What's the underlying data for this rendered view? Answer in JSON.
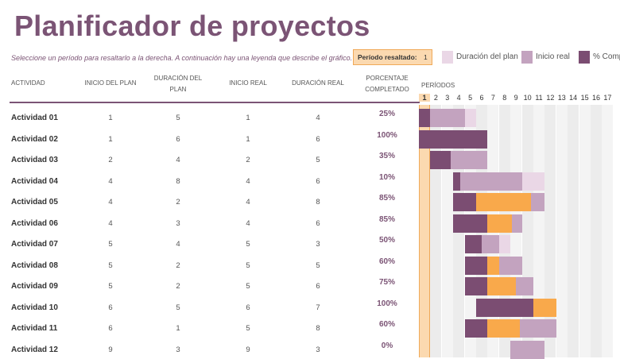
{
  "title": "Planificador de proyectos",
  "subtitle": "Seleccione un período para resaltarlo a la derecha.  A continuación hay una leyenda que describe el gráfico.",
  "highlight": {
    "label": "Período resaltado:",
    "value": "1"
  },
  "legend": [
    {
      "name": "Duración del plan",
      "color": "#ead7e6"
    },
    {
      "name": "Inicio real",
      "color": "#c3a3bf"
    },
    {
      "name": "% Completado",
      "color": "#7b4d72"
    }
  ],
  "columns": {
    "actividad": "ACTIVIDAD",
    "inicio_plan": "INICIO DEL PLAN",
    "duracion_plan": "DURACIÓN DEL PLAN",
    "inicio_real": "INICIO REAL",
    "duracion_real": "DURACIÓN REAL",
    "porcentaje": "PORCENTAJE COMPLETADO",
    "periodos": "PERÍODOS"
  },
  "periods": [
    "1",
    "2",
    "3",
    "4",
    "5",
    "6",
    "7",
    "8",
    "9",
    "10",
    "11",
    "12",
    "13",
    "14",
    "15",
    "16",
    "17"
  ],
  "colors": {
    "accent": "#7b5475",
    "plan": "#ead7e6",
    "actual": "#c3a3bf",
    "complete": "#7b4d72",
    "beyond": "#f9a94b",
    "highlight": "#fbd9b0"
  },
  "rows": [
    {
      "name": "Actividad 01",
      "plan_start": 1,
      "plan_dur": 5,
      "act_start": 1,
      "act_dur": 4,
      "pct": "25%",
      "pct_val": 25
    },
    {
      "name": "Actividad 02",
      "plan_start": 1,
      "plan_dur": 6,
      "act_start": 1,
      "act_dur": 6,
      "pct": "100%",
      "pct_val": 100
    },
    {
      "name": "Actividad 03",
      "plan_start": 2,
      "plan_dur": 4,
      "act_start": 2,
      "act_dur": 5,
      "pct": "35%",
      "pct_val": 35
    },
    {
      "name": "Actividad 04",
      "plan_start": 4,
      "plan_dur": 8,
      "act_start": 4,
      "act_dur": 6,
      "pct": "10%",
      "pct_val": 10
    },
    {
      "name": "Actividad 05",
      "plan_start": 4,
      "plan_dur": 2,
      "act_start": 4,
      "act_dur": 8,
      "pct": "85%",
      "pct_val": 85
    },
    {
      "name": "Actividad 06",
      "plan_start": 4,
      "plan_dur": 3,
      "act_start": 4,
      "act_dur": 6,
      "pct": "85%",
      "pct_val": 85
    },
    {
      "name": "Actividad 07",
      "plan_start": 5,
      "plan_dur": 4,
      "act_start": 5,
      "act_dur": 3,
      "pct": "50%",
      "pct_val": 50
    },
    {
      "name": "Actividad 08",
      "plan_start": 5,
      "plan_dur": 2,
      "act_start": 5,
      "act_dur": 5,
      "pct": "60%",
      "pct_val": 60
    },
    {
      "name": "Actividad 09",
      "plan_start": 5,
      "plan_dur": 2,
      "act_start": 5,
      "act_dur": 6,
      "pct": "75%",
      "pct_val": 75
    },
    {
      "name": "Actividad 10",
      "plan_start": 6,
      "plan_dur": 5,
      "act_start": 6,
      "act_dur": 7,
      "pct": "100%",
      "pct_val": 100
    },
    {
      "name": "Actividad 11",
      "plan_start": 6,
      "plan_dur": 1,
      "act_start": 5,
      "act_dur": 8,
      "pct": "60%",
      "pct_val": 60
    },
    {
      "name": "Actividad 12",
      "plan_start": 9,
      "plan_dur": 3,
      "act_start": 9,
      "act_dur": 3,
      "pct": "0%",
      "pct_val": 0
    }
  ]
}
